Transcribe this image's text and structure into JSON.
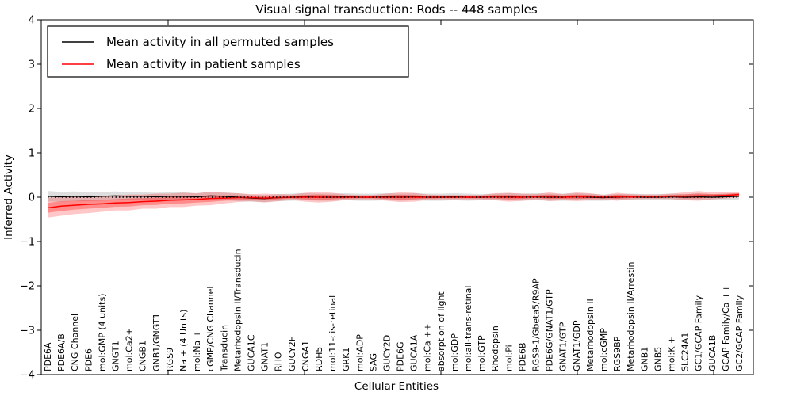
{
  "chart_data": {
    "type": "line",
    "title": "Visual signal transduction: Rods -- 448 samples",
    "xlabel": "Cellular Entities",
    "ylabel": "Inferred Activity",
    "ylim": [
      -4,
      4
    ],
    "yticks": [
      4,
      3,
      2,
      1,
      0,
      -1,
      -2,
      -3,
      -4
    ],
    "ytick_labels": [
      "4",
      "3",
      "2",
      "1",
      "0",
      "−1",
      "−2",
      "−3",
      "−4"
    ],
    "grid": false,
    "legend_position": "upper left",
    "zero_line": true,
    "categories": [
      "PDE6A",
      "PDE6A/B",
      "CNG Channel",
      "PDE6",
      "mol:GMP (4 units)",
      "GNGT1",
      "mol:Ca2+",
      "CNGB1",
      "GNB1/GNGT1",
      "RGS9",
      "Na + (4 Units)",
      "mol:Na +",
      "cGMP/CNG Channel",
      "Transducin",
      "Metarhodopsin II/Transducin",
      "GUCA1C",
      "GNAT1",
      "RHO",
      "GUCY2F",
      "CNGA1",
      "RDH5",
      "mol:11-cis-retinal",
      "GRK1",
      "mol:ADP",
      "SAG",
      "GUCY2D",
      "PDE6G",
      "GUCA1A",
      "mol:Ca ++",
      "absorption of light",
      "mol:GDP",
      "mol:all-trans-retinal",
      "mol:GTP",
      "Rhodopsin",
      "mol:Pi",
      "PDE6B",
      "RGS9-1/Gbeta5/R9AP",
      "PDE6G/GNAT1/GTP",
      "GNAT1/GTP",
      "GNAT1/GDP",
      "Metarhodopsin II",
      "mol:cGMP",
      "RGS9BP",
      "Metarhodopsin II/Arrestin",
      "GNB1",
      "GNB5",
      "mol:K +",
      "SLC24A1",
      "GC1/GCAP Family",
      "GUCA1B",
      "GCAP Family/Ca ++",
      "GC2/GCAP Family"
    ],
    "series": [
      {
        "name": "Mean activity in all permuted samples",
        "color": "#000000",
        "values": [
          0.02,
          0.01,
          0.02,
          0.01,
          0.02,
          0.03,
          0.02,
          0.02,
          0.01,
          0.02,
          0.02,
          0.01,
          0.03,
          0.02,
          0.0,
          -0.02,
          -0.03,
          -0.01,
          0.0,
          0.01,
          0.0,
          0.0,
          0.01,
          0.0,
          0.0,
          0.01,
          0.0,
          0.01,
          0.0,
          0.0,
          0.01,
          0.0,
          0.0,
          0.01,
          0.01,
          0.0,
          0.01,
          0.0,
          0.0,
          0.01,
          0.0,
          -0.01,
          0.0,
          0.01,
          0.0,
          0.0,
          0.01,
          0.0,
          0.01,
          0.0,
          0.01,
          0.02
        ],
        "band": [
          0.12,
          0.11,
          0.11,
          0.1,
          0.1,
          0.1,
          0.09,
          0.09,
          0.09,
          0.09,
          0.09,
          0.08,
          0.09,
          0.09,
          0.09,
          0.08,
          0.08,
          0.08,
          0.08,
          0.08,
          0.08,
          0.08,
          0.08,
          0.08,
          0.08,
          0.08,
          0.08,
          0.08,
          0.08,
          0.08,
          0.08,
          0.08,
          0.07,
          0.07,
          0.08,
          0.08,
          0.08,
          0.08,
          0.08,
          0.08,
          0.08,
          0.07,
          0.07,
          0.07,
          0.07,
          0.07,
          0.07,
          0.07,
          0.07,
          0.07,
          0.07,
          0.07
        ]
      },
      {
        "name": "Mean activity in patient samples",
        "color": "#ff0000",
        "values": [
          -0.24,
          -0.2,
          -0.18,
          -0.16,
          -0.15,
          -0.13,
          -0.12,
          -0.1,
          -0.09,
          -0.07,
          -0.06,
          -0.05,
          -0.03,
          -0.02,
          -0.01,
          -0.01,
          -0.02,
          -0.01,
          0.0,
          0.0,
          0.0,
          0.0,
          0.0,
          0.0,
          0.0,
          0.0,
          0.0,
          0.0,
          0.0,
          0.0,
          0.0,
          0.0,
          0.0,
          0.01,
          0.0,
          0.0,
          0.01,
          0.01,
          0.0,
          0.01,
          0.01,
          0.0,
          0.01,
          0.01,
          0.01,
          0.01,
          0.02,
          0.02,
          0.03,
          0.03,
          0.04,
          0.06
        ],
        "band": [
          0.22,
          0.22,
          0.2,
          0.2,
          0.18,
          0.17,
          0.18,
          0.16,
          0.17,
          0.15,
          0.16,
          0.14,
          0.15,
          0.12,
          0.1,
          0.08,
          0.1,
          0.08,
          0.06,
          0.1,
          0.12,
          0.1,
          0.06,
          0.05,
          0.05,
          0.08,
          0.11,
          0.1,
          0.06,
          0.05,
          0.05,
          0.05,
          0.05,
          0.08,
          0.1,
          0.08,
          0.06,
          0.1,
          0.07,
          0.1,
          0.08,
          0.05,
          0.09,
          0.06,
          0.05,
          0.05,
          0.06,
          0.09,
          0.11,
          0.08,
          0.07,
          0.06
        ]
      }
    ]
  }
}
